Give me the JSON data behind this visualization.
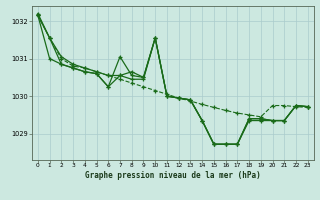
{
  "bg_color": "#cce8e0",
  "grid_color": "#aacccc",
  "line_color": "#1a6b1a",
  "xlabel": "Graphe pression niveau de la mer (hPa)",
  "ylim": [
    1028.3,
    1032.4
  ],
  "xlim": [
    -0.5,
    23.5
  ],
  "yticks": [
    1029,
    1030,
    1031,
    1032
  ],
  "xticks": [
    0,
    1,
    2,
    3,
    4,
    5,
    6,
    7,
    8,
    9,
    10,
    11,
    12,
    13,
    14,
    15,
    16,
    17,
    18,
    19,
    20,
    21,
    22,
    23
  ],
  "s1_y": [
    1032.15,
    1031.55,
    1031.0,
    1030.8,
    1030.75,
    1030.65,
    1030.55,
    1030.45,
    1030.35,
    1030.25,
    1030.15,
    1030.05,
    1029.95,
    1029.87,
    1029.78,
    1029.7,
    1029.62,
    1029.55,
    1029.5,
    1029.45,
    1029.75,
    1029.75,
    1029.72,
    1029.7
  ],
  "s2_y": [
    1032.15,
    1031.55,
    1031.05,
    1030.85,
    1030.75,
    1030.65,
    1030.55,
    1030.55,
    1030.45,
    1030.45,
    1031.55,
    1030.0,
    1029.95,
    1029.9,
    1029.35,
    1028.72,
    1028.72,
    1028.72,
    1029.35,
    1029.35,
    1029.35,
    1029.35,
    1029.75,
    1029.72
  ],
  "s3_y": [
    1032.15,
    1031.0,
    1030.85,
    1030.75,
    1030.65,
    1030.6,
    1030.25,
    1030.55,
    1030.65,
    1030.5,
    1031.55,
    1030.0,
    1029.95,
    1029.9,
    1029.35,
    1028.72,
    1028.72,
    1028.72,
    1029.4,
    1029.4,
    1029.35,
    1029.35,
    1029.75,
    1029.72
  ],
  "s4_y": [
    1032.2,
    1031.55,
    1030.85,
    1030.75,
    1030.65,
    1030.6,
    1030.25,
    1031.05,
    1030.55,
    1030.5,
    1031.55,
    1030.0,
    1029.95,
    1029.9,
    1029.35,
    1028.72,
    1028.72,
    1028.72,
    1029.4,
    1029.4,
    1029.35,
    1029.35,
    1029.75,
    1029.72
  ]
}
